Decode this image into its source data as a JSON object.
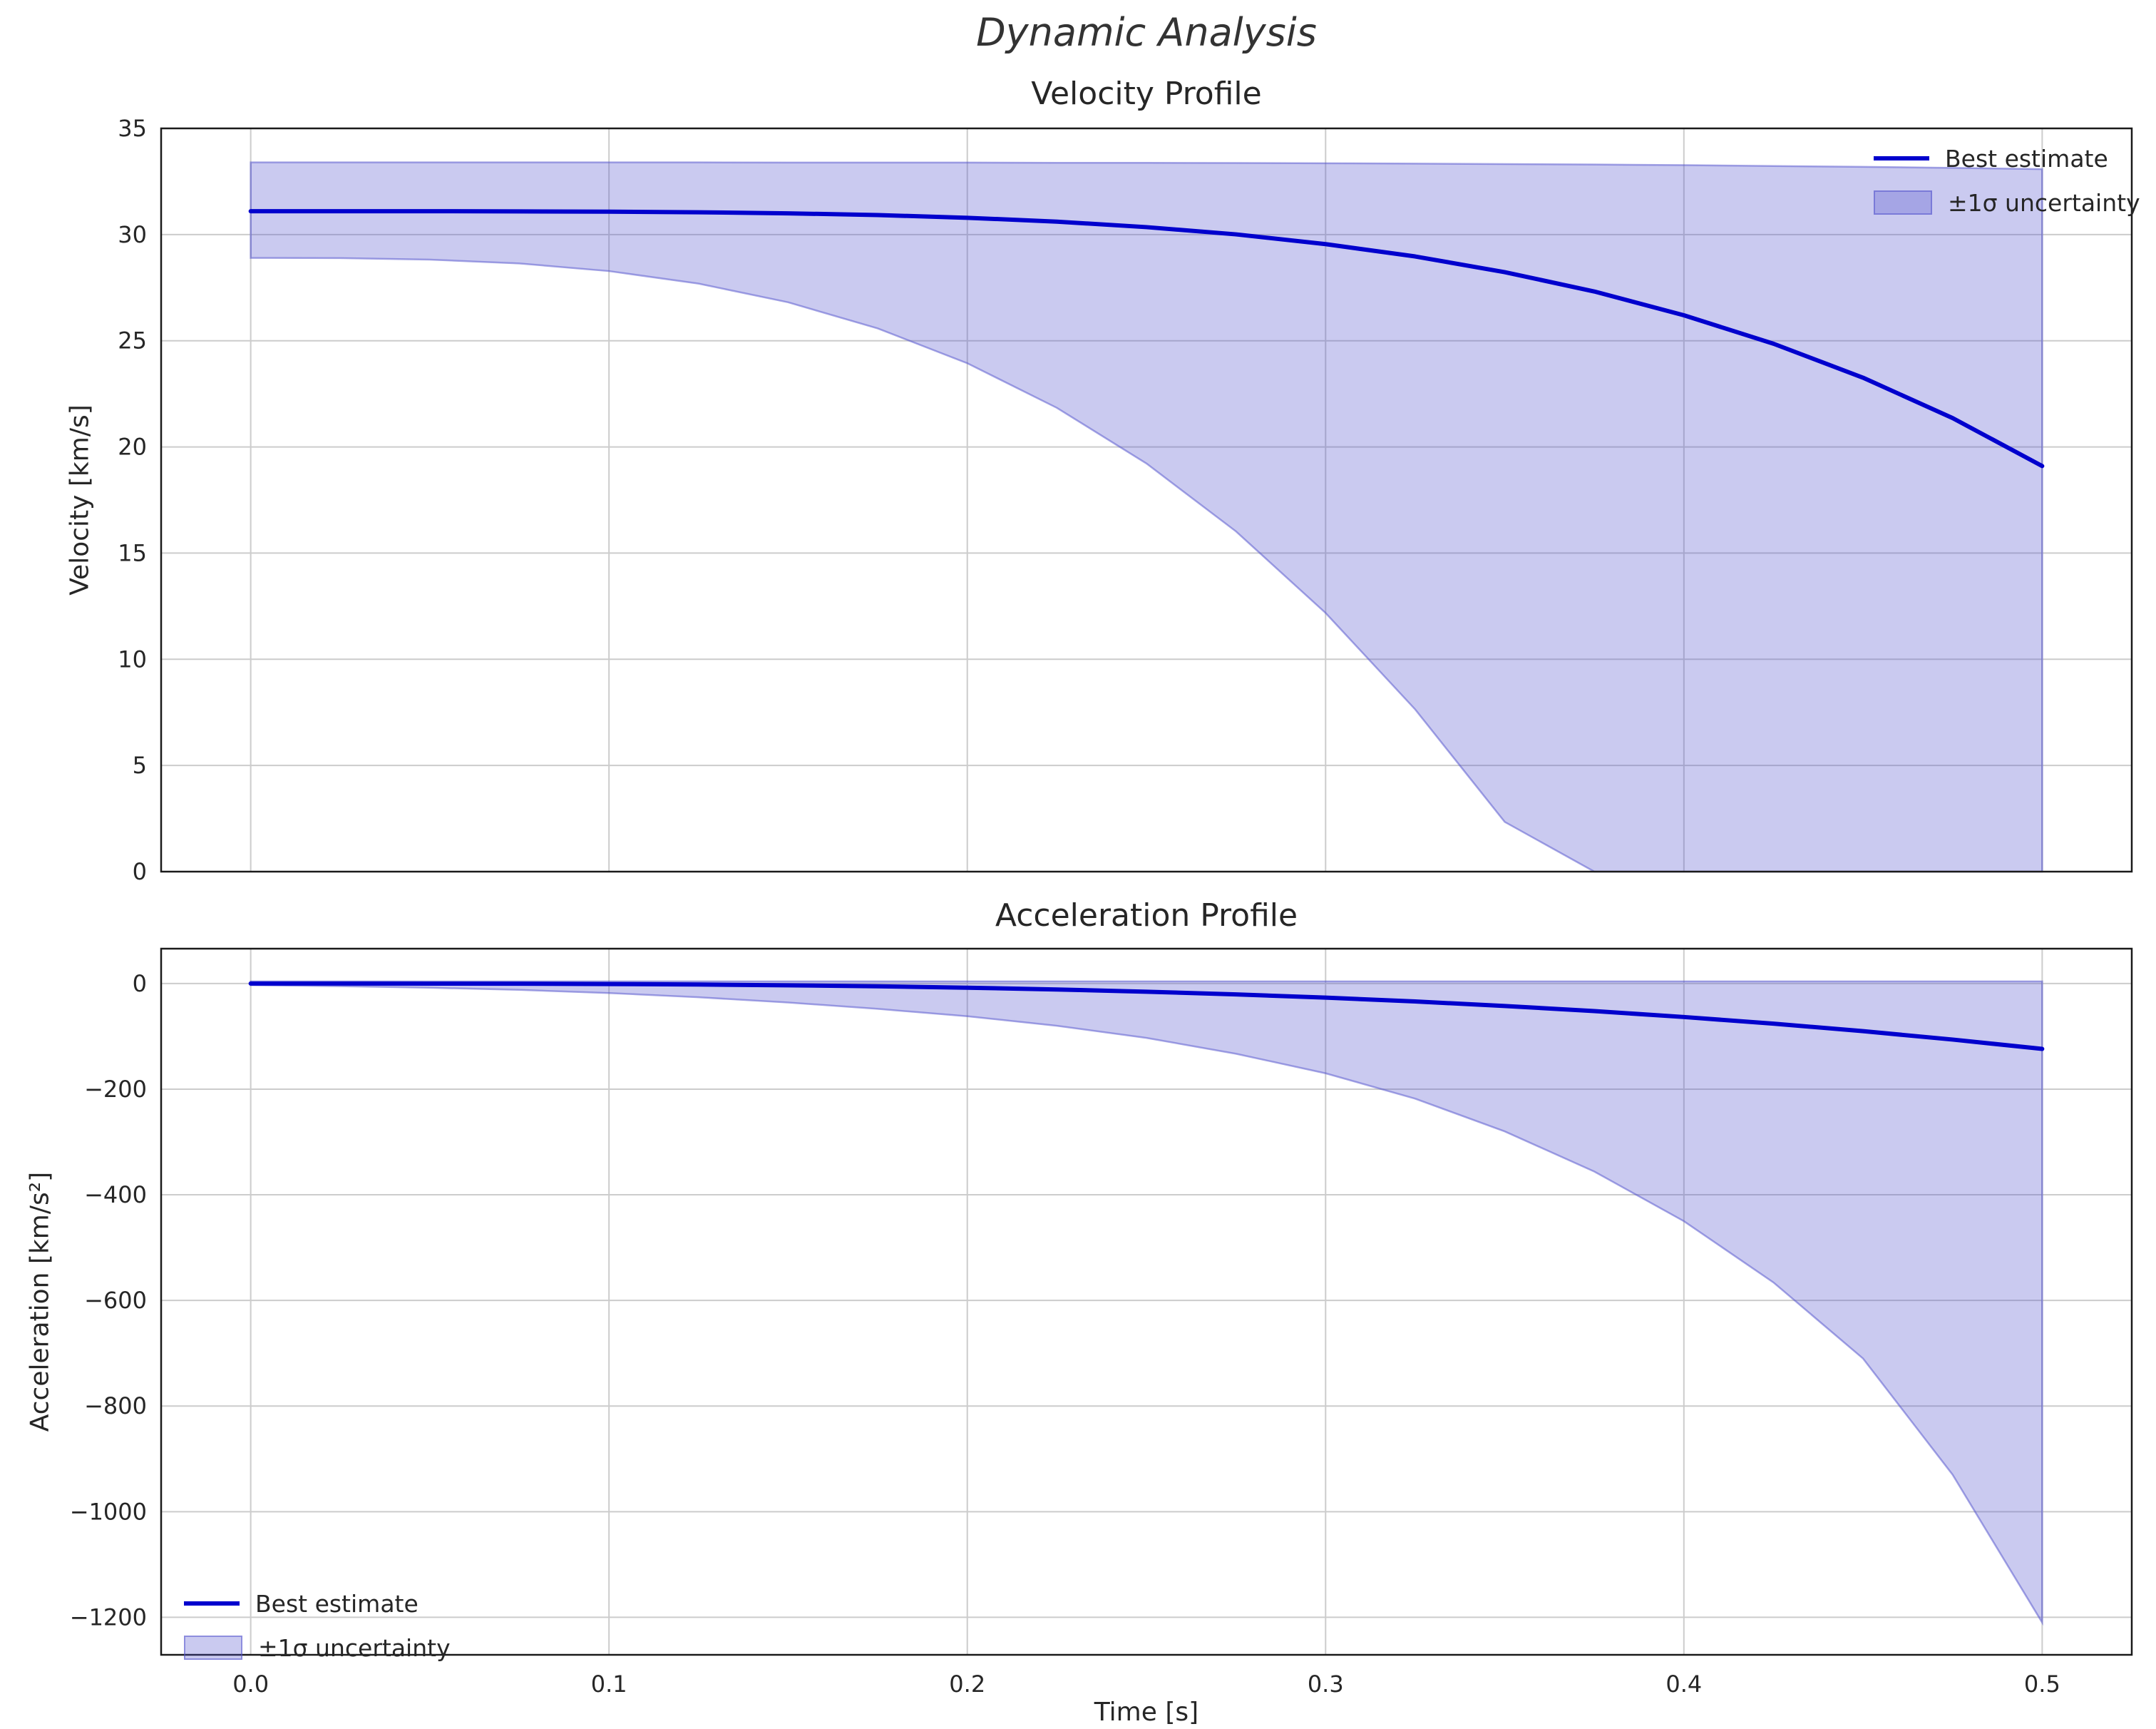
{
  "figure": {
    "title": "Dynamic Analysis"
  },
  "xlabel": "Time [s]",
  "colors": {
    "line": "#0000cd",
    "band": "#5050cc",
    "band_opacity": 0.3,
    "band_edge_opacity": 0.5,
    "grid": "#cccccc",
    "spine": "#1a1a1a",
    "text": "#262626"
  },
  "chart_data": [
    {
      "type": "line",
      "title": "Velocity Profile",
      "ylabel": "Velocity [km/s]",
      "xlim": [
        -0.025,
        0.525
      ],
      "ylim": [
        0,
        35
      ],
      "xticks": [
        0,
        0.1,
        0.2,
        0.3,
        0.4,
        0.5
      ],
      "xtick_labels": [
        "0.0",
        "0.1",
        "0.2",
        "0.3",
        "0.4",
        "0.5"
      ],
      "yticks": [
        0,
        5,
        10,
        15,
        20,
        25,
        30,
        35
      ],
      "ytick_labels": [
        "0",
        "5",
        "10",
        "15",
        "20",
        "25",
        "30",
        "35"
      ],
      "show_xtick_labels": false,
      "grid": true,
      "legend_position": "upper-right",
      "x": [
        0,
        0.025,
        0.05,
        0.075,
        0.1,
        0.125,
        0.15,
        0.175,
        0.2,
        0.225,
        0.25,
        0.275,
        0.3,
        0.325,
        0.35,
        0.375,
        0.4,
        0.425,
        0.45,
        0.475,
        0.5
      ],
      "series": [
        {
          "name": "Best estimate",
          "values": [
            31.1,
            31.1,
            31.1,
            31.09,
            31.08,
            31.05,
            31.0,
            30.92,
            30.79,
            30.61,
            30.35,
            30.01,
            29.55,
            28.97,
            28.23,
            27.32,
            26.2,
            24.86,
            23.26,
            21.36,
            19.1
          ]
        }
      ],
      "band": {
        "name": "±1σ uncertainty",
        "upper": [
          33.4,
          33.4,
          33.4,
          33.4,
          33.4,
          33.4,
          33.39,
          33.39,
          33.39,
          33.38,
          33.38,
          33.37,
          33.36,
          33.34,
          33.32,
          33.3,
          33.27,
          33.23,
          33.19,
          33.14,
          33.08
        ],
        "lower": [
          28.9,
          28.89,
          28.82,
          28.64,
          28.28,
          27.69,
          26.81,
          25.58,
          23.94,
          21.84,
          19.22,
          16.02,
          12.18,
          7.64,
          2.34,
          0,
          0,
          0,
          0,
          0,
          0
        ]
      }
    },
    {
      "type": "line",
      "title": "Acceleration Profile",
      "ylabel": "Acceleration [km/s²]",
      "xlim": [
        -0.025,
        0.525
      ],
      "ylim": [
        -1271,
        66
      ],
      "xticks": [
        0,
        0.1,
        0.2,
        0.3,
        0.4,
        0.5
      ],
      "xtick_labels": [
        "0.0",
        "0.1",
        "0.2",
        "0.3",
        "0.4",
        "0.5"
      ],
      "yticks": [
        0,
        -200,
        -400,
        -600,
        -800,
        -1000,
        -1200
      ],
      "ytick_labels": [
        "0",
        "−200",
        "−400",
        "−600",
        "−800",
        "−1000",
        "−1200"
      ],
      "show_xtick_labels": true,
      "grid": true,
      "legend_position": "lower-left",
      "x": [
        0,
        0.025,
        0.05,
        0.075,
        0.1,
        0.125,
        0.15,
        0.175,
        0.2,
        0.225,
        0.25,
        0.275,
        0.3,
        0.325,
        0.35,
        0.375,
        0.4,
        0.425,
        0.45,
        0.475,
        0.5
      ],
      "series": [
        {
          "name": "Best estimate",
          "values": [
            0,
            -0.02,
            -0.12,
            -0.42,
            -0.99,
            -1.93,
            -3.34,
            -5.3,
            -7.92,
            -11.3,
            -15.5,
            -20.6,
            -26.7,
            -34,
            -42.5,
            -52.2,
            -63.4,
            -76,
            -90.2,
            -106.1,
            -123.8
          ]
        }
      ],
      "band": {
        "name": "±1σ uncertainty",
        "upper": [
          4,
          4,
          4,
          4,
          4,
          4,
          4,
          4,
          4,
          4,
          4,
          4,
          4,
          4,
          4,
          4,
          4,
          4,
          4,
          4,
          4
        ],
        "lower": [
          -3,
          -5,
          -8,
          -12,
          -18,
          -26,
          -36,
          -48,
          -62,
          -80,
          -103,
          -133,
          -170,
          -218,
          -280,
          -356,
          -450,
          -566,
          -710,
          -930,
          -1210
        ]
      }
    }
  ]
}
